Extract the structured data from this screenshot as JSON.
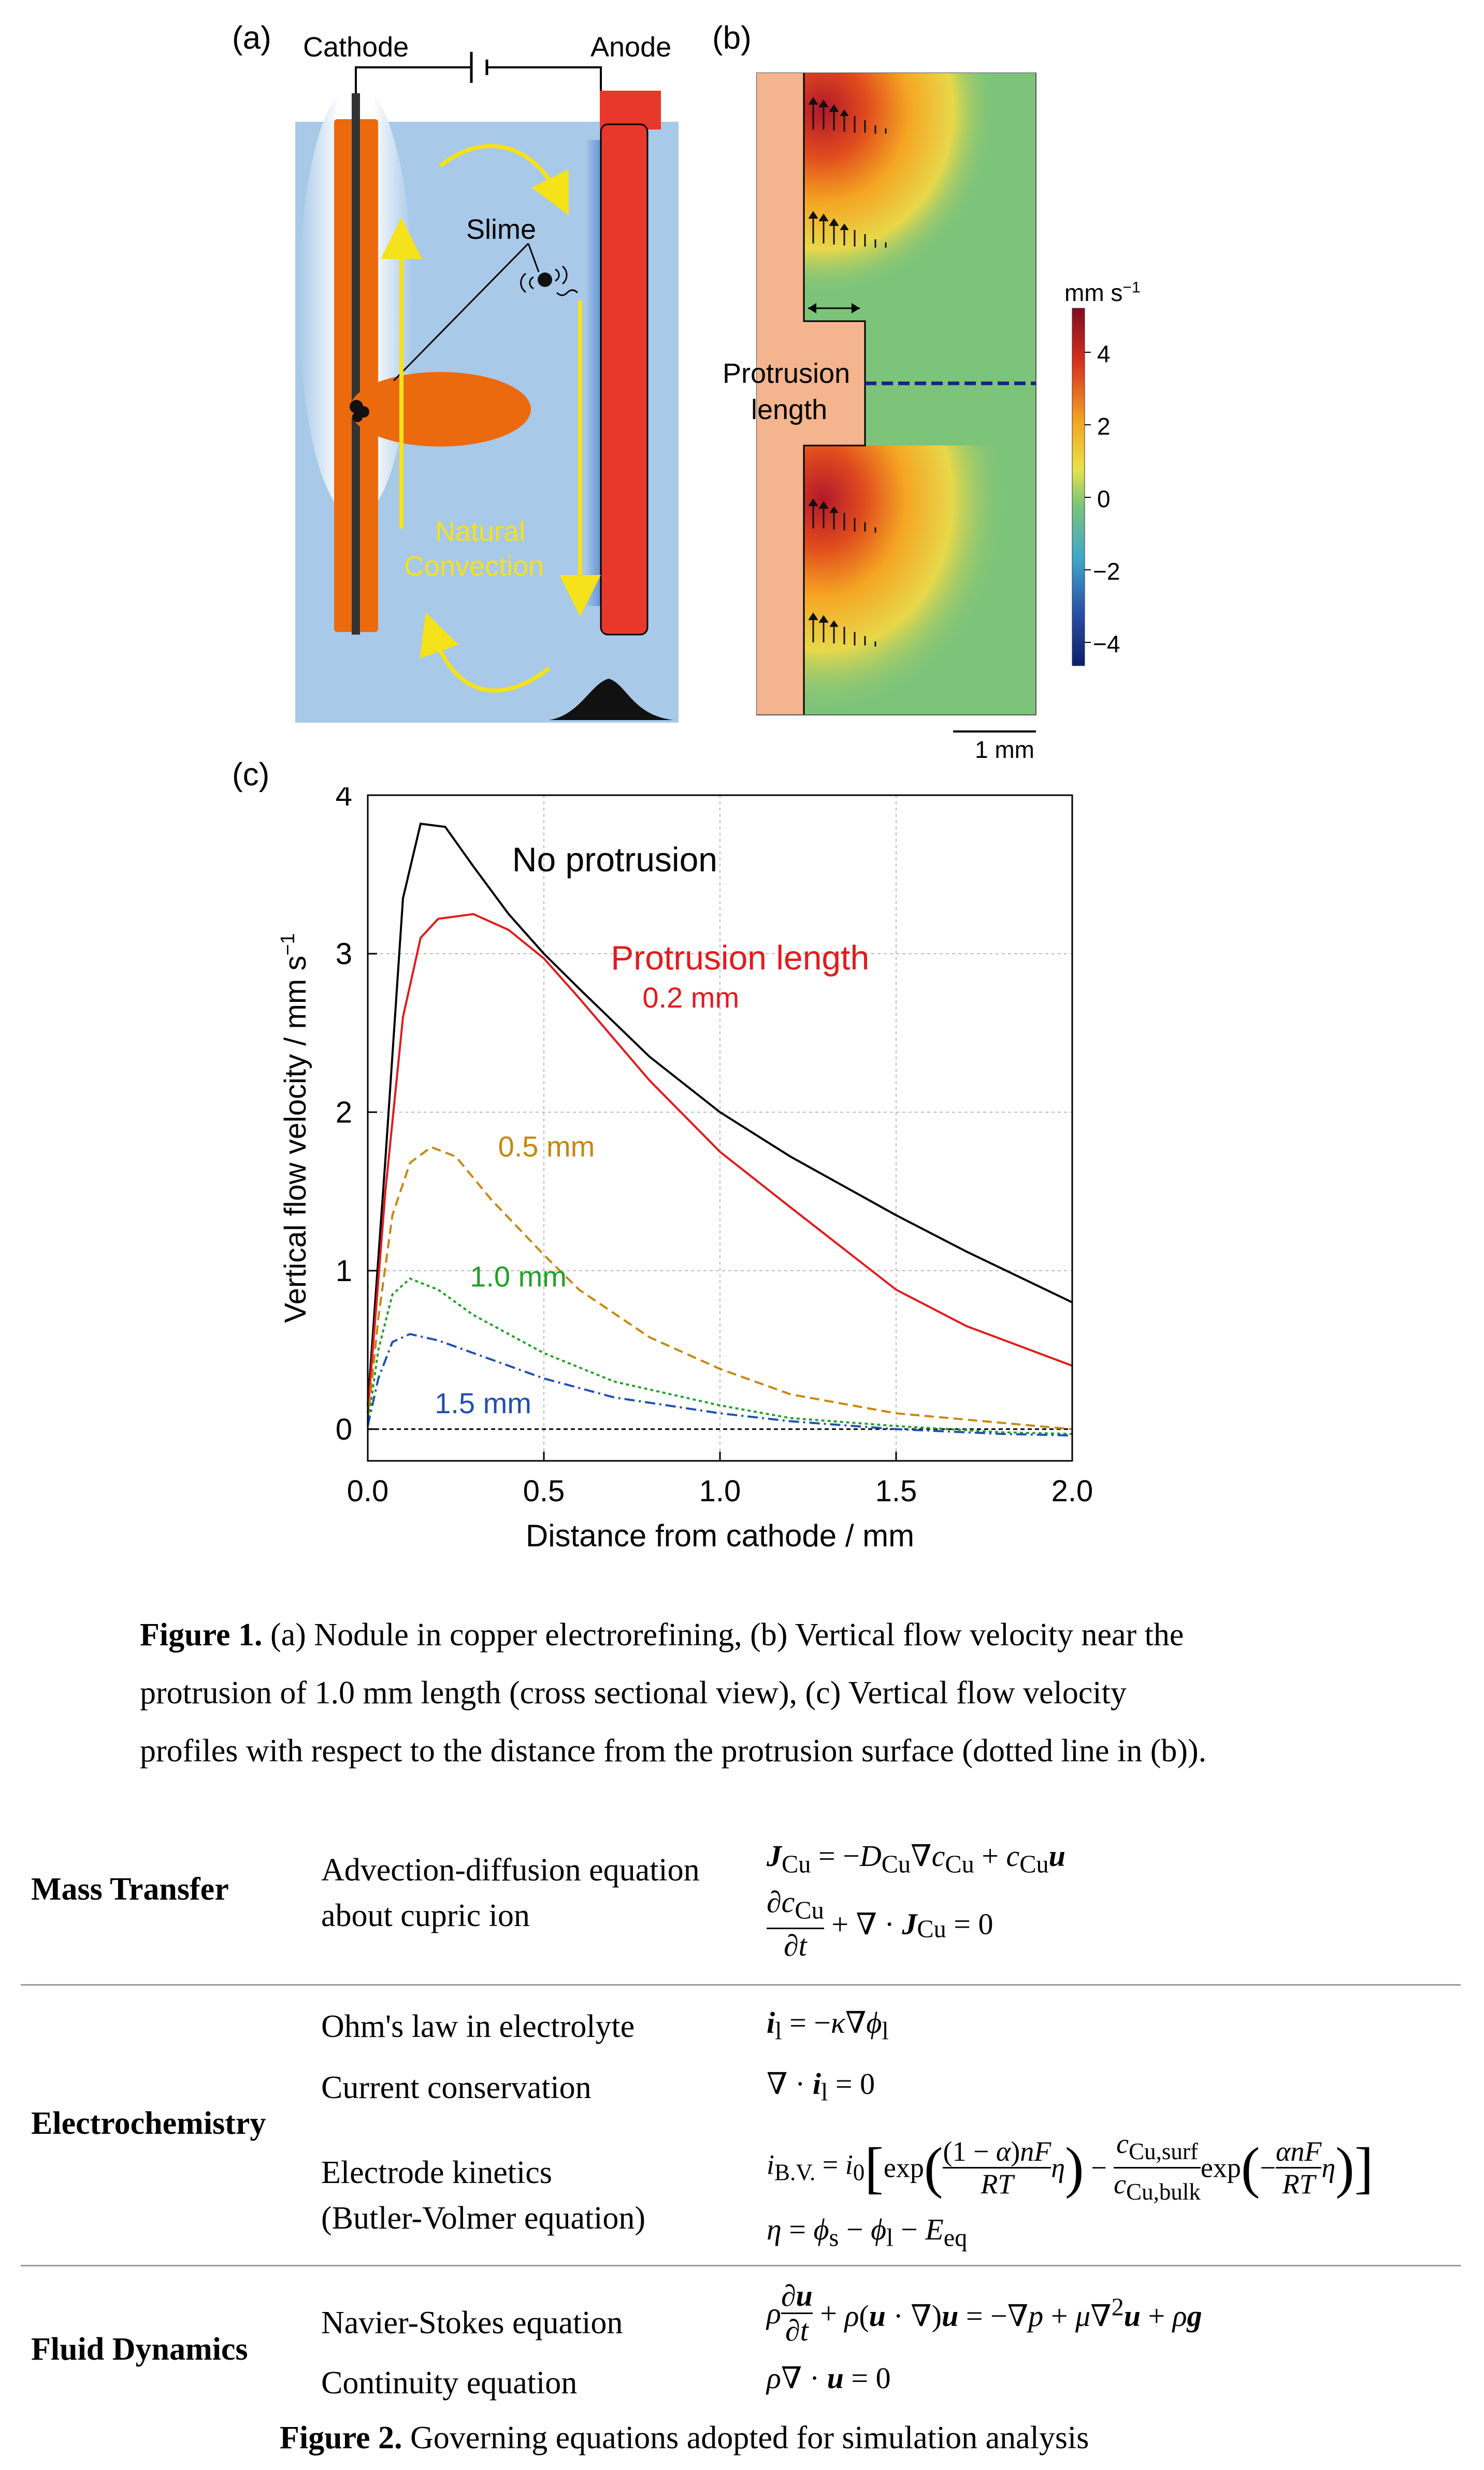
{
  "figure1": {
    "panel_a": {
      "label": "(a)",
      "cathode_label": "Cathode",
      "anode_label": "Anode",
      "slime_label": "Slime",
      "convection_line1": "Natural",
      "convection_line2": "Convection"
    },
    "panel_b": {
      "label": "(b)",
      "protrusion_line1": "Protrusion",
      "protrusion_line2": "length",
      "colorbar_unit": "mm s",
      "colorbar_unit_sup": "−1",
      "colorbar_ticks": [
        "4",
        "2",
        "0",
        "−2",
        "−4"
      ],
      "colorbar_range": [
        -5.5,
        5.5
      ],
      "scale_bar": "1 mm",
      "colors": {
        "electrode": "#f4b48e",
        "high": "#b2182b",
        "mid": "#e8d84a",
        "low": "#2b4fa8",
        "bulk": "#7cc47a"
      }
    },
    "panel_c": {
      "label": "(c)"
    },
    "caption_bold": "Figure 1.",
    "caption_lines": [
      " (a) Nodule in copper electrorefining, (b) Vertical flow velocity near the",
      "protrusion of 1.0 mm length (cross sectional view), (c) Vertical flow velocity",
      "profiles with respect to the distance from the protrusion surface (dotted line in (b))."
    ]
  },
  "chart_data": {
    "type": "line",
    "title": "",
    "xlabel": "Distance from cathode / mm",
    "ylabel": "Vertical flow velocity / mm s",
    "ylabel_sup": "−1",
    "xlim": [
      0.0,
      2.0
    ],
    "ylim": [
      -0.2,
      4.0
    ],
    "xticks": [
      "0.0",
      "0.5",
      "1.0",
      "1.5",
      "2.0"
    ],
    "yticks": [
      "0",
      "1",
      "2",
      "3",
      "4"
    ],
    "grid": true,
    "legend_title": "Protrusion length",
    "series": [
      {
        "name": "No protrusion",
        "color": "#000000",
        "dash": "none",
        "x": [
          0,
          0.05,
          0.1,
          0.15,
          0.22,
          0.3,
          0.4,
          0.5,
          0.6,
          0.8,
          1.0,
          1.2,
          1.5,
          1.7,
          2.0
        ],
        "y": [
          0.15,
          1.7,
          3.35,
          3.82,
          3.8,
          3.55,
          3.25,
          3.0,
          2.78,
          2.35,
          2.0,
          1.72,
          1.35,
          1.12,
          0.8
        ]
      },
      {
        "name": "0.2 mm",
        "color": "#e31a1c",
        "dash": "none",
        "x": [
          0,
          0.05,
          0.1,
          0.15,
          0.2,
          0.3,
          0.4,
          0.5,
          0.6,
          0.8,
          1.0,
          1.2,
          1.5,
          1.7,
          2.0
        ],
        "y": [
          0.1,
          1.5,
          2.6,
          3.1,
          3.22,
          3.25,
          3.15,
          2.97,
          2.72,
          2.2,
          1.75,
          1.4,
          0.88,
          0.65,
          0.4
        ]
      },
      {
        "name": "0.5 mm",
        "color": "#c8860a",
        "dash": "18,10",
        "x": [
          0,
          0.03,
          0.07,
          0.12,
          0.18,
          0.25,
          0.35,
          0.5,
          0.6,
          0.8,
          1.0,
          1.2,
          1.5,
          1.8,
          2.0
        ],
        "y": [
          0.05,
          0.7,
          1.35,
          1.68,
          1.78,
          1.72,
          1.45,
          1.1,
          0.88,
          0.58,
          0.38,
          0.22,
          0.1,
          0.04,
          0.0
        ]
      },
      {
        "name": "1.0 mm",
        "color": "#22a02a",
        "dash": "6,6",
        "x": [
          0,
          0.03,
          0.07,
          0.12,
          0.2,
          0.3,
          0.5,
          0.7,
          1.0,
          1.2,
          1.5,
          1.8,
          2.0
        ],
        "y": [
          0.03,
          0.5,
          0.85,
          0.95,
          0.88,
          0.72,
          0.48,
          0.3,
          0.15,
          0.07,
          0.02,
          -0.02,
          -0.03
        ]
      },
      {
        "name": "1.5 mm",
        "color": "#1f4fb0",
        "dash": "20,8,4,8",
        "x": [
          0,
          0.03,
          0.07,
          0.12,
          0.2,
          0.3,
          0.5,
          0.7,
          1.0,
          1.2,
          1.5,
          1.8,
          2.0
        ],
        "y": [
          0.02,
          0.32,
          0.55,
          0.6,
          0.56,
          0.48,
          0.32,
          0.2,
          0.1,
          0.05,
          0.0,
          -0.03,
          -0.04
        ]
      }
    ],
    "zero_line": 0
  },
  "figure2": {
    "caption_bold": "Figure 2.",
    "caption_text": " Governing equations adopted for simulation analysis",
    "sections": [
      {
        "category": "Mass Transfer",
        "desc1": "Advection-diffusion equation",
        "desc2": "about cupric ion"
      },
      {
        "category": "Electrochemistry",
        "ohm": "Ohm's law in electrolyte",
        "conservation": "Current conservation",
        "kinetics1": "Electrode  kinetics",
        "kinetics2": "(Butler-Volmer equation)"
      },
      {
        "category": "Fluid Dynamics",
        "ns": "Navier-Stokes equation",
        "cont": "Continuity equation"
      }
    ]
  }
}
